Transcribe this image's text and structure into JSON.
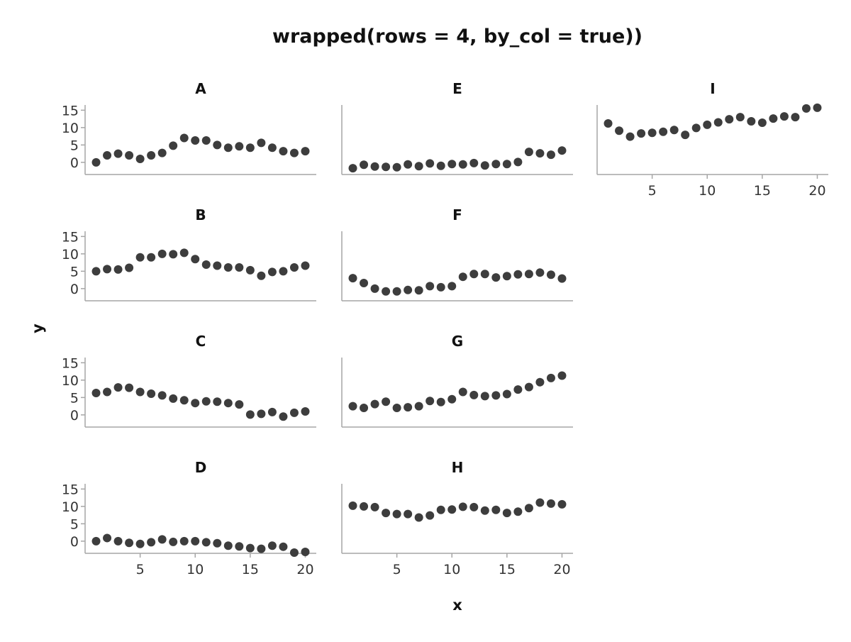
{
  "chart_data": {
    "type": "scatter",
    "title": "wrapped(rows = 4, by_col = true))",
    "xlabel": "x",
    "ylabel": "y",
    "xlim": [
      0,
      21
    ],
    "ylim": [
      -3.5,
      16.5
    ],
    "xticks": [
      5,
      10,
      15,
      20
    ],
    "yticks": [
      0,
      5,
      10,
      15
    ],
    "grid": false,
    "layout": "wrapped, 4 rows, filled by column",
    "point_color": "#3d3d3d",
    "axis_color": "#a6a6a6",
    "x": [
      1,
      2,
      3,
      4,
      5,
      6,
      7,
      8,
      9,
      10,
      11,
      12,
      13,
      14,
      15,
      16,
      17,
      18,
      19,
      20
    ],
    "panels": [
      {
        "name": "A",
        "y": [
          0,
          2,
          2.5,
          2,
          1,
          2,
          2.7,
          4.8,
          7,
          6.3,
          6.3,
          5,
          4.2,
          4.6,
          4.2,
          5.6,
          4.2,
          3.2,
          2.7,
          3.2
        ]
      },
      {
        "name": "B",
        "y": [
          5,
          5.6,
          5.5,
          6,
          9,
          9,
          10,
          9.9,
          10.3,
          8.5,
          6.9,
          6.6,
          6.1,
          6.1,
          5.3,
          3.7,
          4.8,
          5,
          6.1,
          6.6
        ]
      },
      {
        "name": "C",
        "y": [
          6.3,
          6.6,
          7.9,
          7.8,
          6.6,
          6.1,
          5.6,
          4.7,
          4.2,
          3.4,
          3.9,
          3.8,
          3.4,
          3,
          0.1,
          0.3,
          0.8,
          -0.5,
          0.6,
          1
        ]
      },
      {
        "name": "D",
        "y": [
          0,
          0.9,
          0,
          -0.5,
          -0.8,
          -0.3,
          0.5,
          -0.2,
          0,
          0,
          -0.3,
          -0.6,
          -1.3,
          -1.5,
          -2,
          -2.2,
          -1.3,
          -1.6,
          -3.3,
          -3.1
        ]
      },
      {
        "name": "E",
        "y": [
          -1.7,
          -0.7,
          -1.2,
          -1.3,
          -1.4,
          -0.6,
          -1.1,
          -0.3,
          -1,
          -0.5,
          -0.6,
          -0.2,
          -0.9,
          -0.5,
          -0.5,
          0.1,
          3,
          2.6,
          2.2,
          3.4
        ]
      },
      {
        "name": "F",
        "y": [
          3,
          1.6,
          0,
          -0.8,
          -0.8,
          -0.4,
          -0.5,
          0.7,
          0.4,
          0.7,
          3.4,
          4.2,
          4.2,
          3.2,
          3.6,
          4.1,
          4.2,
          4.6,
          4,
          2.9
        ]
      },
      {
        "name": "G",
        "y": [
          2.5,
          2,
          3.1,
          3.8,
          2,
          2.2,
          2.5,
          4,
          3.7,
          4.5,
          6.6,
          5.7,
          5.4,
          5.6,
          6,
          7.3,
          8,
          9.4,
          10.6,
          11.3
        ]
      },
      {
        "name": "H",
        "y": [
          10.2,
          10,
          9.8,
          8.1,
          7.8,
          7.8,
          6.8,
          7.4,
          9,
          9.1,
          9.9,
          9.8,
          8.8,
          9,
          8.1,
          8.5,
          9.5,
          11.1,
          10.8,
          10.6
        ]
      },
      {
        "name": "I",
        "y": [
          11.2,
          9.1,
          7.4,
          8.3,
          8.5,
          8.8,
          9.3,
          7.9,
          9.9,
          10.8,
          11.5,
          12.4,
          13,
          11.8,
          11.4,
          12.6,
          13.2,
          13,
          15.5,
          15.7
        ]
      }
    ]
  }
}
